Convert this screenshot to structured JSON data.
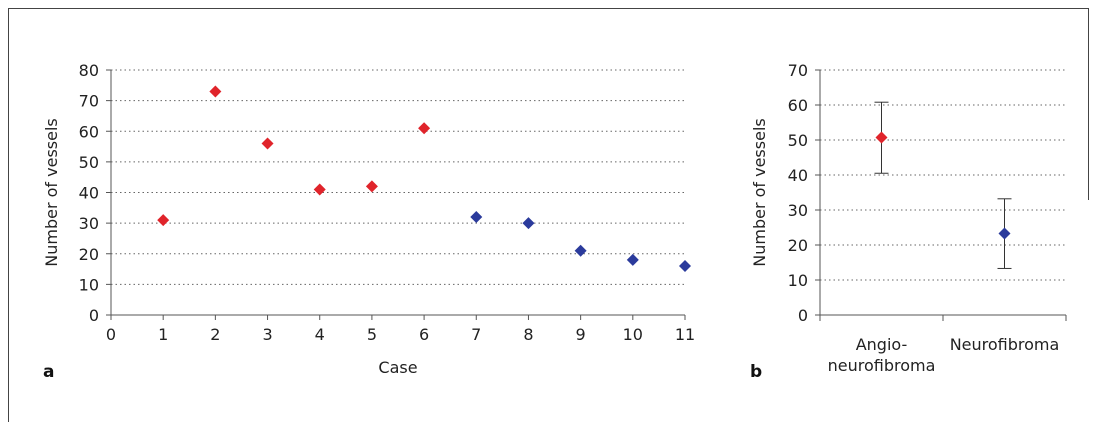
{
  "chart_data": [
    {
      "type": "scatter",
      "panel_label": "a",
      "xlabel": "Case",
      "ylabel": "Number of vessels",
      "xlim": [
        0,
        11
      ],
      "ylim": [
        0,
        80
      ],
      "x_ticks": [
        0,
        1,
        2,
        3,
        4,
        5,
        6,
        7,
        8,
        9,
        10,
        11
      ],
      "y_ticks": [
        0,
        10,
        20,
        30,
        40,
        50,
        60,
        70,
        80
      ],
      "grid": "horizontal dotted",
      "series": [
        {
          "color": "#e0242b",
          "marker": "diamond",
          "points": [
            {
              "x": 1,
              "y": 31
            },
            {
              "x": 2,
              "y": 73
            },
            {
              "x": 3,
              "y": 56
            },
            {
              "x": 4,
              "y": 41
            },
            {
              "x": 5,
              "y": 42
            },
            {
              "x": 6,
              "y": 61
            }
          ]
        },
        {
          "color": "#2b3b9c",
          "marker": "diamond",
          "points": [
            {
              "x": 7,
              "y": 32
            },
            {
              "x": 8,
              "y": 30
            },
            {
              "x": 9,
              "y": 21
            },
            {
              "x": 10,
              "y": 18
            },
            {
              "x": 11,
              "y": 16
            }
          ]
        }
      ]
    },
    {
      "type": "scatter",
      "panel_label": "b",
      "ylabel": "Number of vessels",
      "ylim": [
        0,
        70
      ],
      "y_ticks": [
        0,
        10,
        20,
        30,
        40,
        50,
        60,
        70
      ],
      "grid": "horizontal dotted",
      "categories": [
        [
          "Angio-",
          "neurofibroma"
        ],
        [
          "Neurofibroma"
        ]
      ],
      "points": [
        {
          "category": 0,
          "y": 50.7,
          "err_low": 40.5,
          "err_high": 60.8,
          "color": "#e0242b"
        },
        {
          "category": 1,
          "y": 23.3,
          "err_low": 13.3,
          "err_high": 33.2,
          "color": "#2b3b9c"
        }
      ]
    }
  ]
}
